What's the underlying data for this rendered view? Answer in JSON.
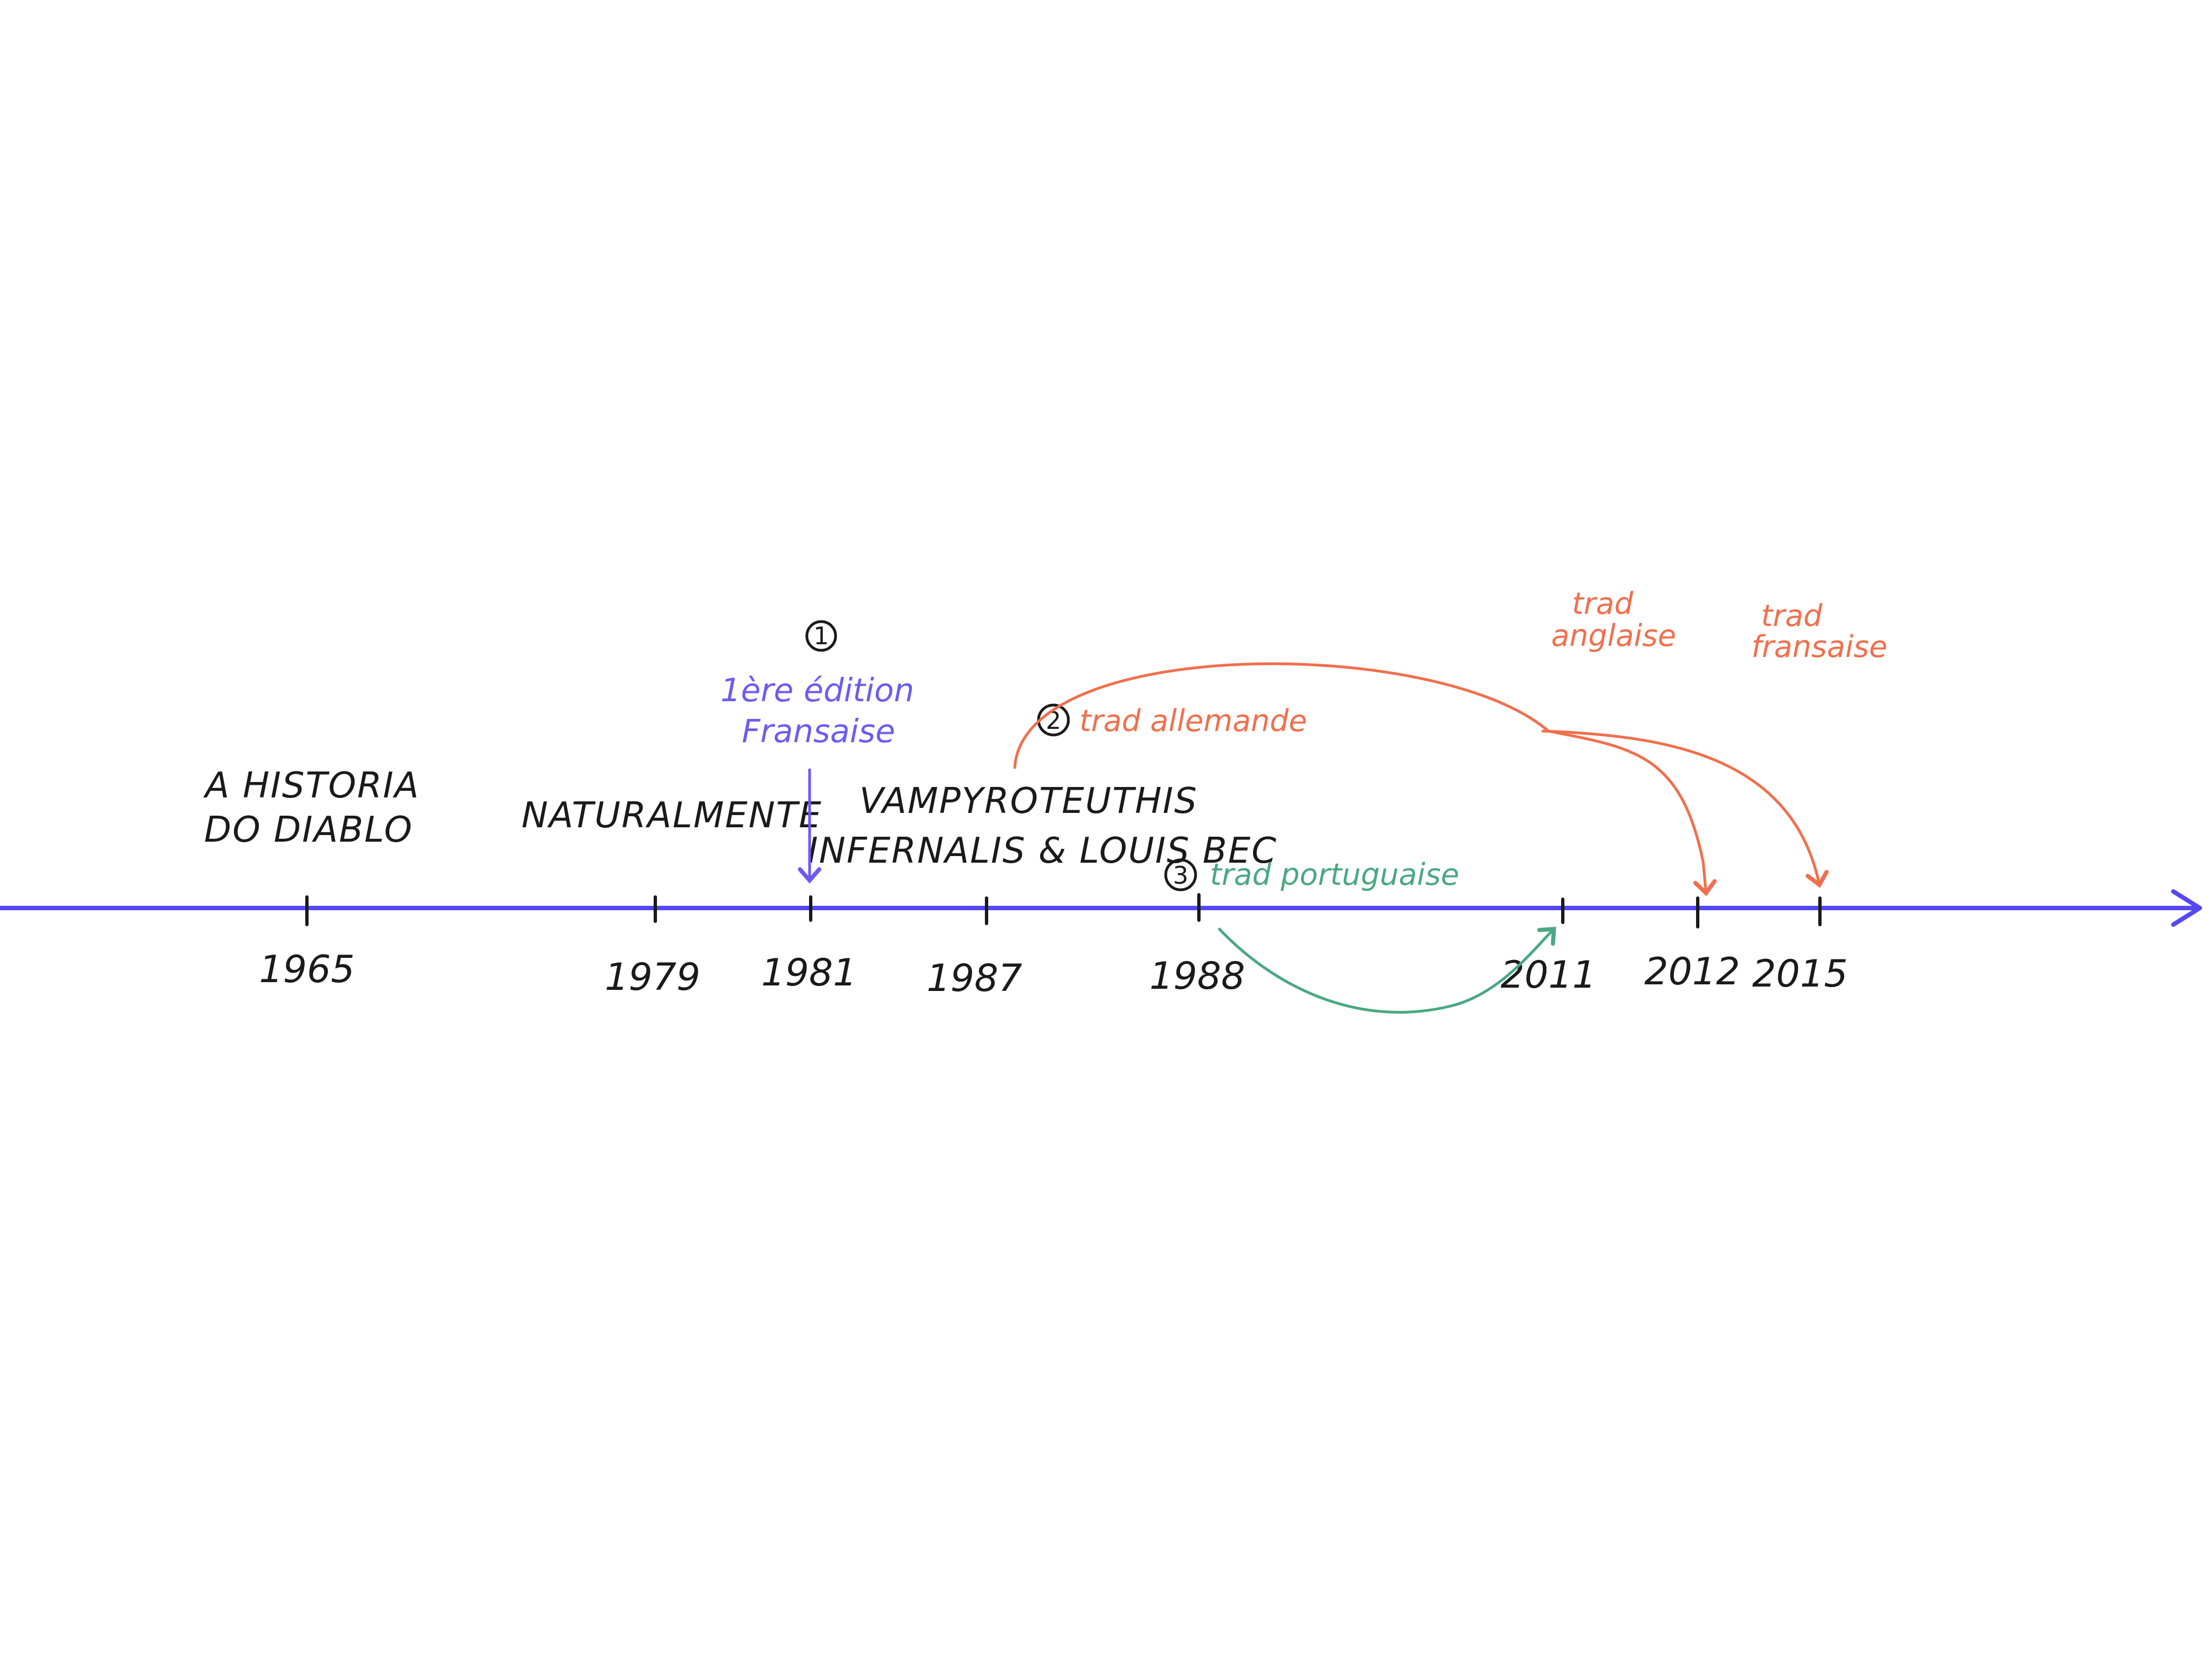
{
  "timeline": {
    "axis_color": "#5548f2",
    "ticks": [
      {
        "year": "1965",
        "work": [
          "A HISTORIA",
          "DO DIABLO"
        ]
      },
      {
        "year": "1979",
        "work": [
          "NATURALMENTE"
        ]
      },
      {
        "year": "1981",
        "work": []
      },
      {
        "year": "1987",
        "work": [
          "VAMPYROTEUTHIS",
          "INFERNALIS & LOUIS BEC"
        ]
      },
      {
        "year": "1988",
        "work": []
      },
      {
        "year": "2011",
        "work": []
      },
      {
        "year": "2012",
        "work": []
      },
      {
        "year": "2015",
        "work": []
      }
    ]
  },
  "annotations": {
    "first_edition": {
      "number": "1",
      "line1": "1ère édition",
      "line2": "Fransaise",
      "color": "#6b5cf0"
    },
    "german": {
      "number": "2",
      "label": "trad allemande",
      "color": "#f06f4d"
    },
    "portuguese": {
      "number": "3",
      "label": "trad portuguaise",
      "color": "#4aa882"
    },
    "english": {
      "line1": "trad",
      "line2": "anglaise",
      "color": "#f06f4d"
    },
    "french": {
      "line1": "trad",
      "line2": "fransaise",
      "color": "#f06f4d"
    }
  }
}
